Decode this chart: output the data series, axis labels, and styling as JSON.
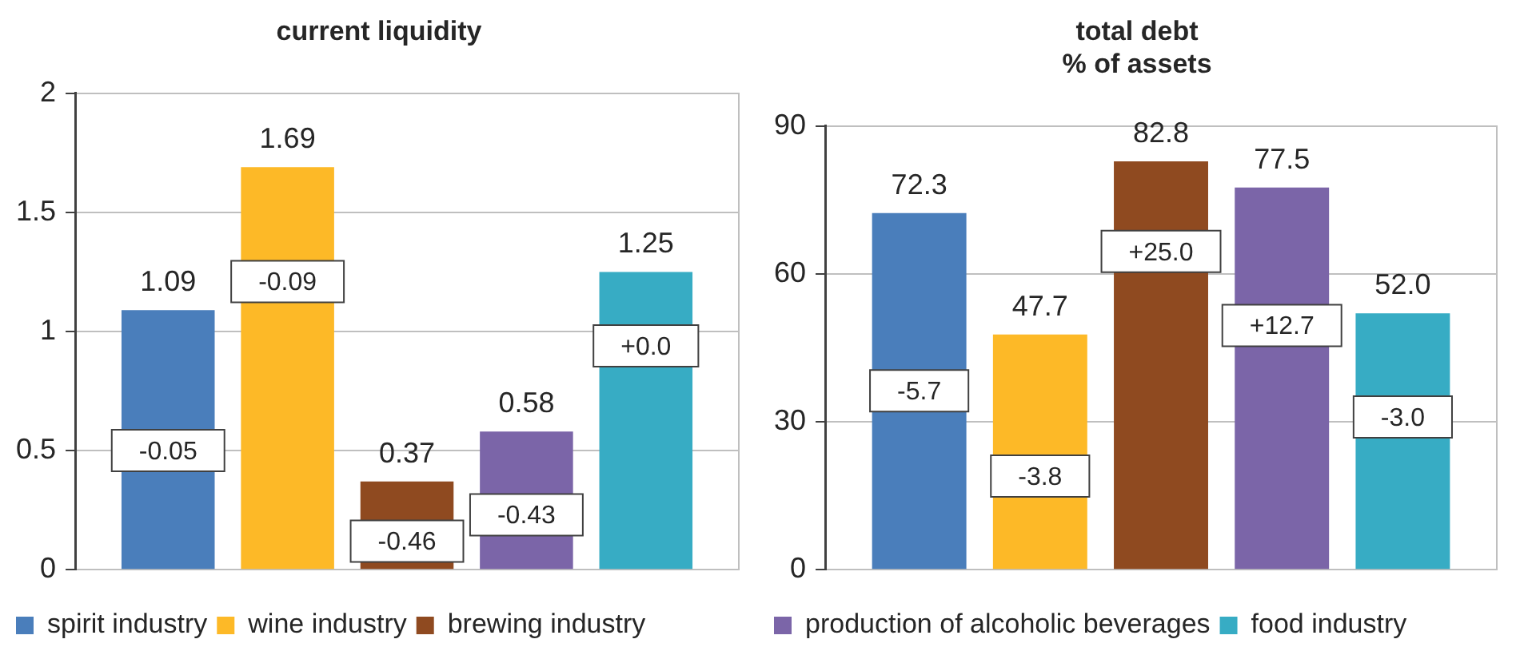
{
  "chart_data": [
    {
      "type": "bar",
      "title": "current liquidity",
      "categories": [
        null
      ],
      "ylim": [
        0,
        2
      ],
      "yticks": [
        0,
        {
          "value": 0.5,
          "label": "0.5"
        },
        1,
        {
          "value": 1.5,
          "label": "1.5"
        },
        2
      ],
      "grid": "y",
      "legend": "bottom",
      "series": [
        {
          "name": "spirit industry",
          "color": "#4a7ebb",
          "values": [
            1.09
          ],
          "value_labels": [
            "1.09"
          ]
        },
        {
          "name": "wine industry",
          "color": "#fdb927",
          "values": [
            1.69
          ],
          "value_labels": [
            "1.69"
          ]
        },
        {
          "name": "brewing industry",
          "color": "#8f4a20",
          "values": [
            0.37
          ],
          "value_labels": [
            "0.37"
          ]
        },
        {
          "color": "#7b65a8",
          "values": [
            0.58
          ],
          "value_labels": [
            "0.58"
          ]
        },
        {
          "color": "#37acc4",
          "values": [
            1.25
          ],
          "value_labels": [
            "1.25"
          ]
        }
      ],
      "annotations": [
        "-0.05",
        "-0.09",
        "-0.46",
        "-0.43",
        "+0.0"
      ]
    },
    {
      "type": "bar",
      "title": "total debt\n% of assets",
      "categories": [
        null
      ],
      "ylim": [
        0,
        90
      ],
      "yticks": [
        0,
        30,
        60,
        90
      ],
      "grid": "y",
      "legend": "bottom",
      "series": [
        {
          "color": "#4a7ebb",
          "values": [
            72.3
          ],
          "value_labels": [
            "72.3"
          ]
        },
        {
          "color": "#fdb927",
          "values": [
            47.7
          ],
          "value_labels": [
            "47.7"
          ]
        },
        {
          "color": "#8f4a20",
          "values": [
            82.8
          ],
          "value_labels": [
            "82.8"
          ]
        },
        {
          "name": "production of alcoholic beverages",
          "color": "#7b65a8",
          "values": [
            77.5
          ],
          "value_labels": [
            "77.5"
          ]
        },
        {
          "name": "food industry",
          "color": "#37acc4",
          "values": [
            52.0
          ],
          "value_labels": [
            "52.0"
          ]
        }
      ],
      "annotations": [
        "-5.7",
        "-3.8",
        "+25.0",
        "+12.7",
        "-3.0"
      ]
    }
  ]
}
